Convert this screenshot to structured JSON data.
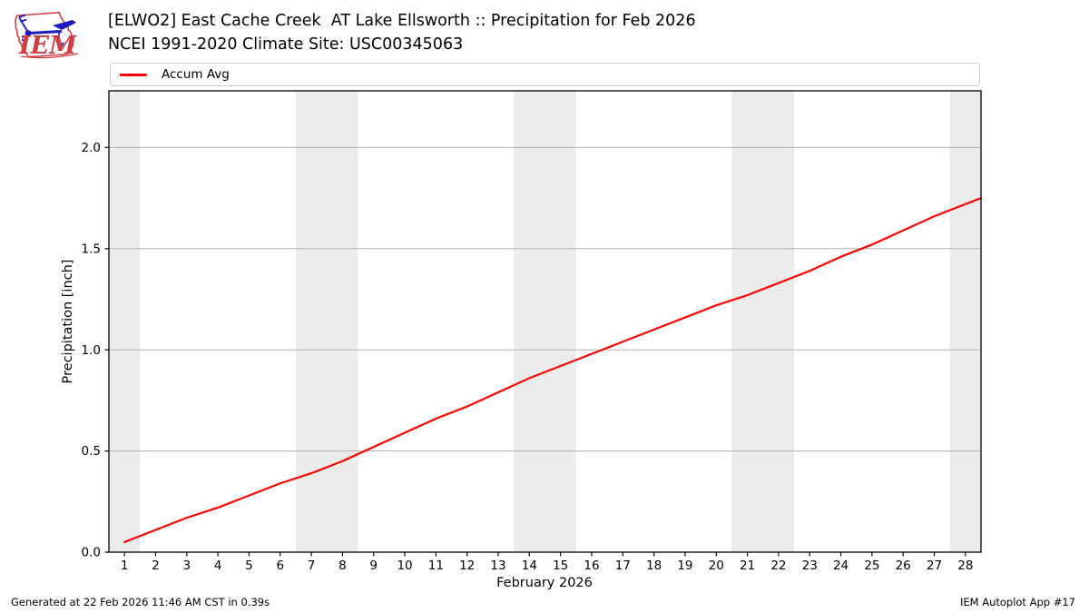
{
  "header": {
    "title_line1": "[ELWO2] East Cache Creek  AT Lake Ellsworth :: Precipitation for Feb 2026",
    "title_line2": "NCEI 1991-2020 Climate Site: USC00345063",
    "logo_text": "IEM"
  },
  "legend": {
    "items": [
      {
        "label": "Accum Avg",
        "color": "#ff0000"
      }
    ]
  },
  "footer": {
    "left": "Generated at 22 Feb 2026 11:46 AM CST in 0.39s",
    "right": "IEM Autoplot App #17"
  },
  "colors": {
    "accent_red": "#ff0000",
    "logo_red": "#d23b3f",
    "logo_blue": "#1a1abf",
    "grid": "#b3b3b3",
    "weekend_band": "#ececec",
    "axis": "#000000",
    "legend_border": "#cccccc"
  },
  "chart_data": {
    "type": "line",
    "title": "[ELWO2] East Cache Creek  AT Lake Ellsworth :: Precipitation for Feb 2026",
    "subtitle": "NCEI 1991-2020 Climate Site: USC00345063",
    "xlabel": "February 2026",
    "ylabel": "Precipitation [inch]",
    "x": [
      1,
      2,
      3,
      4,
      5,
      6,
      7,
      8,
      9,
      10,
      11,
      12,
      13,
      14,
      15,
      16,
      17,
      18,
      19,
      20,
      21,
      22,
      23,
      24,
      25,
      26,
      27,
      28
    ],
    "series": [
      {
        "name": "Accum Avg",
        "color": "#ff0000",
        "values": [
          0.05,
          0.11,
          0.17,
          0.22,
          0.28,
          0.34,
          0.39,
          0.45,
          0.52,
          0.59,
          0.66,
          0.72,
          0.79,
          0.86,
          0.92,
          0.98,
          1.04,
          1.1,
          1.16,
          1.22,
          1.27,
          1.33,
          1.39,
          1.46,
          1.52,
          1.59,
          1.66,
          1.72
        ]
      }
    ],
    "edge_point": {
      "x": 28.5,
      "value": 1.75
    },
    "xlim": [
      0.5,
      28.5
    ],
    "ylim": [
      0,
      2.28
    ],
    "xticks": [
      1,
      2,
      3,
      4,
      5,
      6,
      7,
      8,
      9,
      10,
      11,
      12,
      13,
      14,
      15,
      16,
      17,
      18,
      19,
      20,
      21,
      22,
      23,
      24,
      25,
      26,
      27,
      28
    ],
    "yticks": [
      0.0,
      0.5,
      1.0,
      1.5,
      2.0
    ],
    "ytick_labels": [
      "0.0",
      "0.5",
      "1.0",
      "1.5",
      "2.0"
    ],
    "grid": "horizontal",
    "legend_position": "top",
    "weekend_bands": [
      [
        0.5,
        1.5
      ],
      [
        6.5,
        8.5
      ],
      [
        13.5,
        15.5
      ],
      [
        20.5,
        22.5
      ],
      [
        27.5,
        28.5
      ]
    ]
  }
}
